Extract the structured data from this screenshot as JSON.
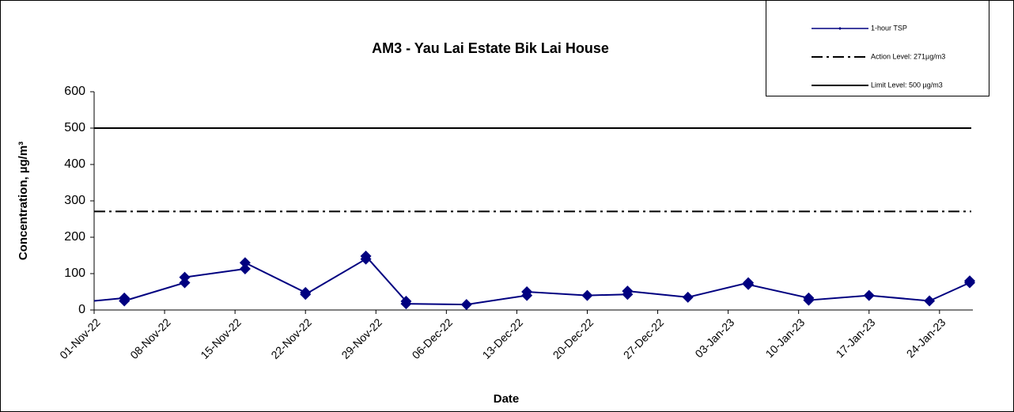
{
  "chart_data": {
    "type": "line",
    "title": "AM3 - Yau Lai Estate Bik Lai House",
    "xlabel": "Date",
    "ylabel": "Concentration, µg/m³",
    "xlim": [
      "2022-11-01",
      "2023-01-27"
    ],
    "ylim": [
      0,
      600
    ],
    "yticks": [
      0,
      100,
      200,
      300,
      400,
      500,
      600
    ],
    "xticks": [
      {
        "value": "2022-11-01",
        "label": "01-Nov-22"
      },
      {
        "value": "2022-11-08",
        "label": "08-Nov-22"
      },
      {
        "value": "2022-11-15",
        "label": "15-Nov-22"
      },
      {
        "value": "2022-11-22",
        "label": "22-Nov-22"
      },
      {
        "value": "2022-11-29",
        "label": "29-Nov-22"
      },
      {
        "value": "2022-12-06",
        "label": "06-Dec-22"
      },
      {
        "value": "2022-12-13",
        "label": "13-Dec-22"
      },
      {
        "value": "2022-12-20",
        "label": "20-Dec-22"
      },
      {
        "value": "2022-12-27",
        "label": "27-Dec-22"
      },
      {
        "value": "2023-01-03",
        "label": "03-Jan-23"
      },
      {
        "value": "2023-01-10",
        "label": "10-Jan-23"
      },
      {
        "value": "2023-01-17",
        "label": "17-Jan-23"
      },
      {
        "value": "2023-01-24",
        "label": "24-Jan-23"
      }
    ],
    "grid": false,
    "legend": "upper right",
    "series": [
      {
        "name": "1-hour TSP",
        "color": "#000080",
        "x": [
          "2022-11-01",
          "2022-11-04",
          "2022-11-04",
          "2022-11-10",
          "2022-11-10",
          "2022-11-16",
          "2022-11-16",
          "2022-11-22",
          "2022-11-22",
          "2022-11-28",
          "2022-11-28",
          "2022-12-02",
          "2022-12-02",
          "2022-12-08",
          "2022-12-14",
          "2022-12-14",
          "2022-12-20",
          "2022-12-24",
          "2022-12-24",
          "2022-12-30",
          "2023-01-05",
          "2023-01-05",
          "2023-01-11",
          "2023-01-11",
          "2023-01-17",
          "2023-01-23",
          "2023-01-27",
          "2023-01-27"
        ],
        "values": [
          25,
          33,
          25,
          75,
          90,
          113,
          130,
          48,
          43,
          140,
          148,
          24,
          17,
          15,
          40,
          50,
          40,
          43,
          52,
          35,
          75,
          70,
          33,
          27,
          40,
          25,
          75,
          80
        ]
      }
    ],
    "hlines": [
      {
        "name": "Action Level:  271µg/m3",
        "value": 271,
        "color": "#000000",
        "style": "dashdot"
      },
      {
        "name": "Limit Level: 500 µg/m3",
        "value": 500,
        "color": "#000000",
        "style": "solid"
      }
    ]
  }
}
